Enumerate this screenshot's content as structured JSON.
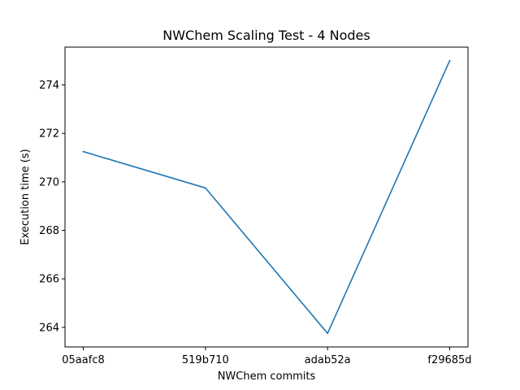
{
  "chart_data": {
    "type": "line",
    "title": "NWChem Scaling Test - 4 Nodes",
    "xlabel": "NWChem commits",
    "ylabel": "Execution time (s)",
    "categories": [
      "05aafc8",
      "519b710",
      "adab52a",
      "f29685d"
    ],
    "series": [
      {
        "values": [
          271.25,
          269.75,
          263.75,
          275.0
        ],
        "color": "#1f77b4"
      }
    ],
    "yticks": [
      264,
      266,
      268,
      270,
      272,
      274
    ],
    "ylim": [
      263.19,
      275.56
    ],
    "grid": false,
    "legend": "none"
  }
}
